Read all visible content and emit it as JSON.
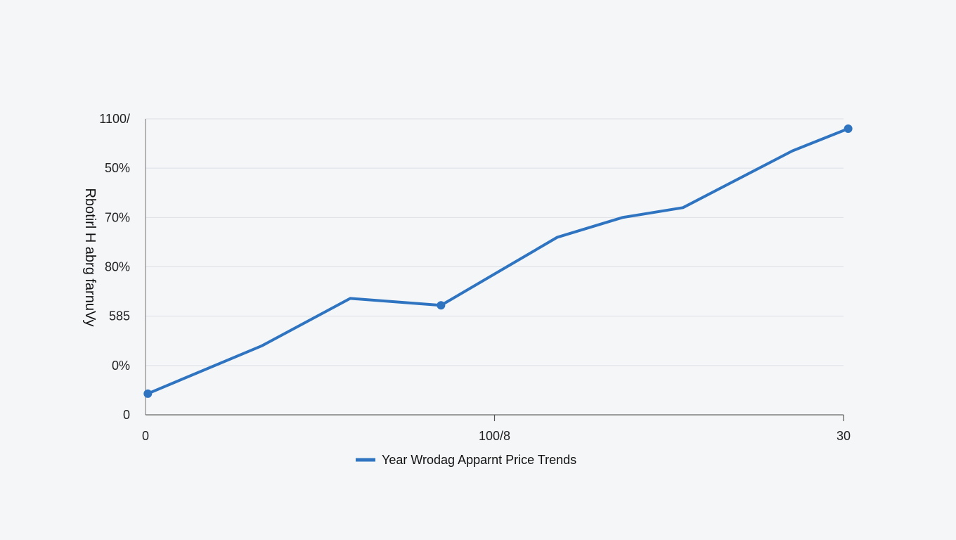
{
  "chart_data": {
    "type": "line",
    "title": "",
    "xlabel": "",
    "ylabel": "Rbotirl H abrg farnuVy",
    "x_ticks": [
      {
        "value": 0,
        "label": "0"
      },
      {
        "value": 15,
        "label": "100/8"
      },
      {
        "value": 30,
        "label": "30"
      }
    ],
    "y_ticks": [
      {
        "value": 0,
        "label": "0"
      },
      {
        "value": 1,
        "label": "0%"
      },
      {
        "value": 2,
        "label": "585"
      },
      {
        "value": 3,
        "label": "80%"
      },
      {
        "value": 4,
        "label": "70%"
      },
      {
        "value": 5,
        "label": "50%"
      },
      {
        "value": 6,
        "label": "1100/"
      }
    ],
    "xlim": [
      0,
      30
    ],
    "ylim": [
      0,
      6
    ],
    "grid": true,
    "legend_position": "bottom-center",
    "series": [
      {
        "name": "Year Wrodag Apparnt Price Trends",
        "color": "#2f74c0",
        "points": [
          {
            "x": 0.1,
            "y": 0.43
          },
          {
            "x": 5,
            "y": 1.4
          },
          {
            "x": 8.8,
            "y": 2.36
          },
          {
            "x": 12.7,
            "y": 2.22
          },
          {
            "x": 17.7,
            "y": 3.6
          },
          {
            "x": 20.5,
            "y": 4.0
          },
          {
            "x": 23.1,
            "y": 4.2
          },
          {
            "x": 27.8,
            "y": 5.35
          },
          {
            "x": 30.2,
            "y": 5.8
          }
        ],
        "markers_at": [
          0,
          3,
          8
        ]
      }
    ]
  }
}
